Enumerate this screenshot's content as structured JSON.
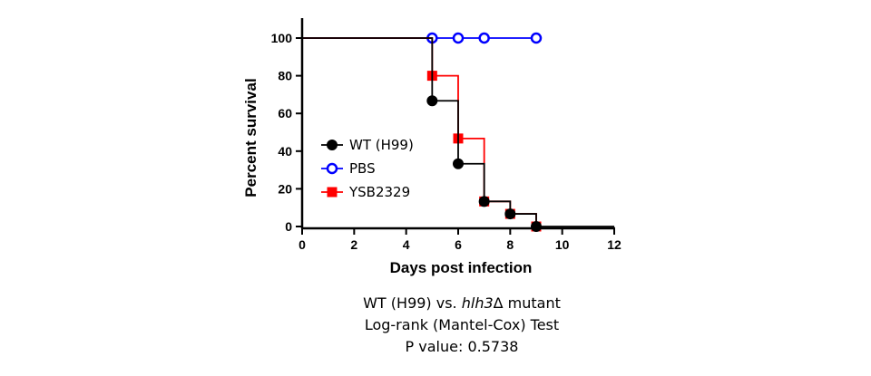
{
  "chart_data": {
    "type": "line",
    "subtype": "kaplan-meier survival",
    "xlabel": "Days post infection",
    "ylabel": "Percent survival",
    "xlim": [
      0,
      12
    ],
    "ylim": [
      0,
      100
    ],
    "xticks": [
      0,
      2,
      4,
      6,
      8,
      10,
      12
    ],
    "yticks": [
      0,
      20,
      40,
      60,
      80,
      100
    ],
    "grid": false,
    "legend_position": "left",
    "series": [
      {
        "name": "WT (H99)",
        "color": "#000000",
        "marker": "filled-circle",
        "steps": [
          [
            0,
            100
          ],
          [
            5,
            66.7
          ],
          [
            6,
            33.3
          ],
          [
            7,
            13.3
          ],
          [
            8,
            6.7
          ],
          [
            9,
            0
          ]
        ],
        "end_x": 12
      },
      {
        "name": "PBS",
        "color": "#0000ff",
        "marker": "open-circle",
        "steps": [
          [
            0,
            100
          ]
        ],
        "censored": [
          5,
          6,
          7,
          9
        ],
        "end_x": 9
      },
      {
        "name": "YSB2329",
        "color": "#ff0000",
        "marker": "filled-square",
        "steps": [
          [
            0,
            100
          ],
          [
            5,
            80
          ],
          [
            6,
            46.7
          ],
          [
            7,
            13.3
          ],
          [
            8,
            6.7
          ],
          [
            9,
            0
          ]
        ],
        "end_x": 9
      }
    ]
  },
  "caption": {
    "line1_prefix": "WT (H99) vs. ",
    "line1_gene": "hlh3",
    "line1_suffix": "Δ mutant",
    "line2": "Log-rank (Mantel-Cox) Test",
    "line3": "P value: 0.5738"
  }
}
